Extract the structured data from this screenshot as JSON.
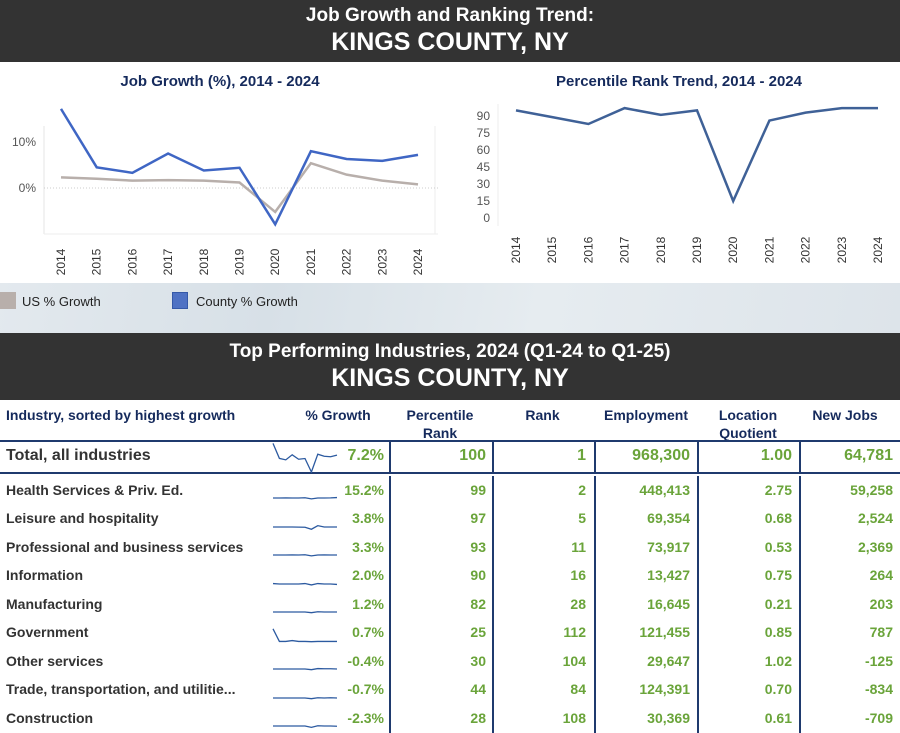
{
  "header": {
    "line1": "Job Growth and Ranking Trend:",
    "line2": "KINGS COUNTY, NY"
  },
  "section2": {
    "line1": "Top Performing Industries, 2024 (Q1-24 to Q1-25)",
    "line2": "KINGS COUNTY, NY"
  },
  "colors": {
    "county": "#3f66c4",
    "us": "#b8afab",
    "rank_line": "#3f6197",
    "title": "#152a5c",
    "value_green": "#6aa43a",
    "banner": "#333333"
  },
  "chart_data": [
    {
      "type": "line",
      "title": "Job Growth (%), 2014 - 2024",
      "categories": [
        "2014",
        "2015",
        "2016",
        "2017",
        "2018",
        "2019",
        "2020",
        "2021",
        "2022",
        "2023",
        "2024"
      ],
      "yticks": [
        "0%",
        "10%"
      ],
      "ylim": [
        -9,
        19
      ],
      "grid": false,
      "series": [
        {
          "name": "US % Growth",
          "values": [
            2.3,
            2.0,
            1.6,
            1.7,
            1.6,
            1.2,
            -5.2,
            5.4,
            2.9,
            1.6,
            0.8
          ]
        },
        {
          "name": "County % Growth",
          "values": [
            17.2,
            4.5,
            3.3,
            7.5,
            3.8,
            4.4,
            -7.9,
            8.0,
            6.3,
            5.9,
            7.2
          ]
        }
      ],
      "legend": "bottom-left"
    },
    {
      "type": "line",
      "title": "Percentile Rank Trend, 2014 - 2024",
      "categories": [
        "2014",
        "2015",
        "2016",
        "2017",
        "2018",
        "2019",
        "2020",
        "2021",
        "2022",
        "2023",
        "2024"
      ],
      "yticks": [
        "0",
        "15",
        "30",
        "45",
        "60",
        "75",
        "90"
      ],
      "ylim": [
        0,
        100
      ],
      "grid": false,
      "series": [
        {
          "values": [
            95,
            89,
            83,
            97,
            91,
            95,
            15,
            86,
            93,
            97,
            97
          ]
        }
      ]
    }
  ],
  "table": {
    "headers": [
      "Industry, sorted by highest growth",
      "% Growth",
      "Percentile Rank",
      "Rank",
      "Employment",
      "Location Quotient",
      "New Jobs"
    ],
    "total": {
      "name": "Total, all industries",
      "growth": "7.2%",
      "pct": "100",
      "rank": "1",
      "emp": "968,300",
      "lq": "1.00",
      "jobs": "64,781",
      "spark": [
        17,
        4.5,
        3.3,
        7.5,
        3.8,
        4.4,
        -7.9,
        8,
        6.3,
        5.9,
        7.2
      ]
    },
    "rows": [
      {
        "name": "Health Services & Priv. Ed.",
        "growth": "15.2%",
        "pct": "99",
        "rank": "2",
        "emp": "448,413",
        "lq": "2.75",
        "jobs": "59,258",
        "spark": [
          3,
          3,
          3.2,
          3,
          3,
          3.5,
          1,
          3,
          3,
          3.2,
          4
        ]
      },
      {
        "name": "Leisure and hospitality",
        "growth": "3.8%",
        "pct": "97",
        "rank": "5",
        "emp": "69,354",
        "lq": "0.68",
        "jobs": "2,524",
        "spark": [
          3,
          3,
          3,
          3,
          2.8,
          2.5,
          -2,
          6,
          3,
          3,
          3
        ]
      },
      {
        "name": "Professional and business services",
        "growth": "3.3%",
        "pct": "93",
        "rank": "11",
        "emp": "73,917",
        "lq": "0.53",
        "jobs": "2,369",
        "spark": [
          3,
          3,
          3,
          3.2,
          3,
          3.5,
          1,
          3,
          3.2,
          3,
          3
        ]
      },
      {
        "name": "Information",
        "growth": "2.0%",
        "pct": "90",
        "rank": "16",
        "emp": "13,427",
        "lq": "0.75",
        "jobs": "264",
        "spark": [
          4,
          3,
          3,
          3,
          3,
          4,
          1,
          4,
          3,
          3,
          2
        ]
      },
      {
        "name": "Manufacturing",
        "growth": "1.2%",
        "pct": "82",
        "rank": "28",
        "emp": "16,645",
        "lq": "0.21",
        "jobs": "203",
        "spark": [
          3,
          3,
          3,
          3,
          3,
          3,
          1.5,
          3.5,
          3,
          3,
          3
        ]
      },
      {
        "name": "Government",
        "growth": "0.7%",
        "pct": "25",
        "rank": "112",
        "emp": "121,455",
        "lq": "0.85",
        "jobs": "787",
        "spark": [
          30,
          2,
          2,
          4,
          2,
          2,
          1.5,
          2,
          2,
          2,
          2
        ]
      },
      {
        "name": "Other services",
        "growth": "-0.4%",
        "pct": "30",
        "rank": "104",
        "emp": "29,647",
        "lq": "1.02",
        "jobs": "-125",
        "spark": [
          3,
          3,
          3,
          3,
          3,
          3,
          1.5,
          4,
          3.5,
          3.5,
          3
        ]
      },
      {
        "name": "Trade, transportation, and utilitie...",
        "growth": "-0.7%",
        "pct": "44",
        "rank": "84",
        "emp": "124,391",
        "lq": "0.70",
        "jobs": "-834",
        "spark": [
          3,
          3,
          3,
          3,
          3,
          3,
          1.5,
          3.5,
          3,
          3.5,
          3
        ]
      },
      {
        "name": "Construction",
        "growth": "-2.3%",
        "pct": "28",
        "rank": "108",
        "emp": "30,369",
        "lq": "0.61",
        "jobs": "-709",
        "spark": [
          3,
          3,
          3,
          3,
          3,
          3,
          0,
          3.5,
          3,
          3,
          2.5
        ]
      }
    ]
  }
}
